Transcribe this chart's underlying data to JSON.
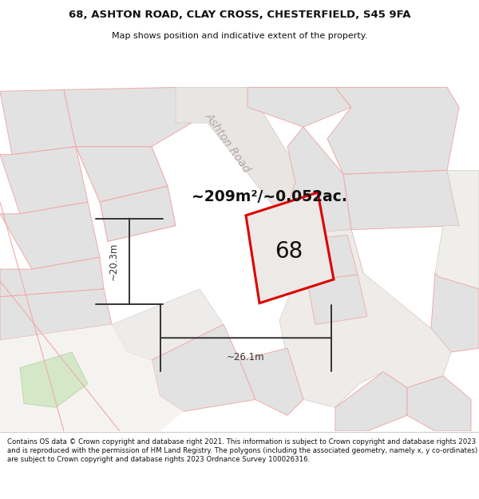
{
  "title_line1": "68, ASHTON ROAD, CLAY CROSS, CHESTERFIELD, S45 9FA",
  "title_line2": "Map shows position and indicative extent of the property.",
  "area_text": "~209m²/~0.052ac.",
  "label_number": "68",
  "dim_width": "~26.1m",
  "dim_height": "~20.3m",
  "road_label": "Ashton Road",
  "footer_text": "Contains OS data © Crown copyright and database right 2021. This information is subject to Crown copyright and database rights 2023 and is reproduced with the permission of HM Land Registry. The polygons (including the associated geometry, namely x, y co-ordinates) are subject to Crown copyright and database rights 2023 Ordnance Survey 100026316.",
  "bg_color": "#f5f3f0",
  "plot_edge": "#dd0000",
  "other_plot_edge": "#f0aaaa",
  "other_plot_fill": "#ebebeb",
  "gray_plot_fill": "#e2e2e2",
  "road_edge": "#cccccc",
  "header_bg": "#ffffff",
  "footer_bg": "#ffffff",
  "dim_color": "#333333",
  "road_label_color": "#b0aaaa",
  "area_text_color": "#111111",
  "number_color": "#111111",
  "green_fill": "#d4e8c8",
  "green_edge": "#b8d4a8"
}
